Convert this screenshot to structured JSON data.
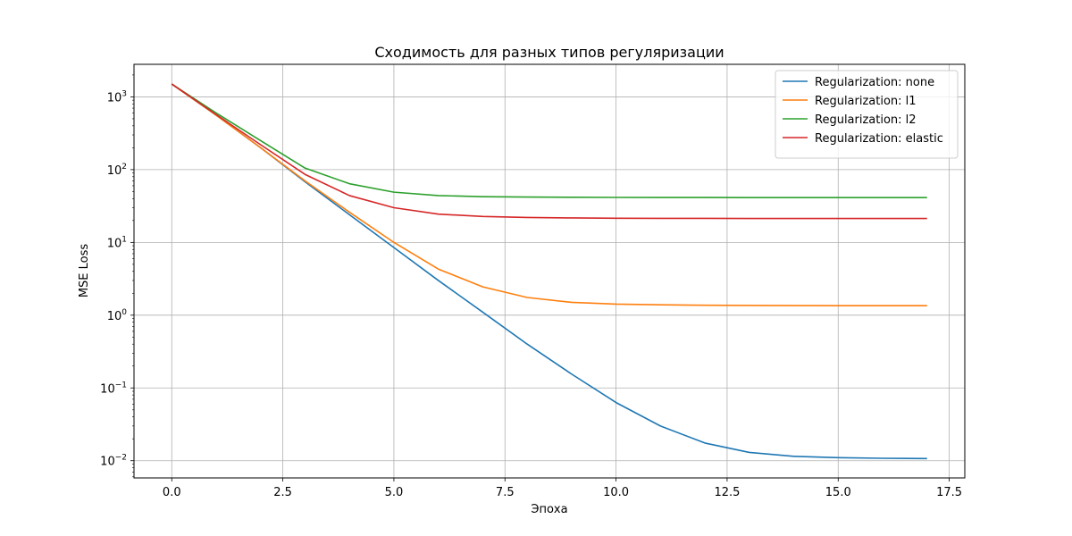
{
  "chart_data": {
    "type": "line",
    "title": "Сходимость для разных типов регуляризации",
    "xlabel": "Эпоха",
    "ylabel": "MSE Loss",
    "yscale": "log",
    "xlim": [
      -0.85,
      17.85
    ],
    "ylim": [
      0.0058,
      2800
    ],
    "x_ticks": [
      0,
      2.5,
      5,
      7.5,
      10,
      12.5,
      15,
      17.5
    ],
    "x_tick_labels": [
      "0.0",
      "2.5",
      "5.0",
      "7.5",
      "10.0",
      "12.5",
      "15.0",
      "17.5"
    ],
    "y_ticks": [
      {
        "value": 0.01,
        "base": "10",
        "exp": "−2"
      },
      {
        "value": 0.1,
        "base": "10",
        "exp": "−1"
      },
      {
        "value": 1,
        "base": "10",
        "exp": "0"
      },
      {
        "value": 10,
        "base": "10",
        "exp": "1"
      },
      {
        "value": 100,
        "base": "10",
        "exp": "2"
      },
      {
        "value": 1000,
        "base": "10",
        "exp": "3"
      }
    ],
    "grid": true,
    "legend_position": "top-right",
    "x": [
      0,
      1,
      2,
      3,
      4,
      5,
      6,
      7,
      8,
      9,
      10,
      11,
      12,
      13,
      14,
      15,
      16,
      17
    ],
    "series": [
      {
        "name": "Regularization: none",
        "color": "#1f77b4",
        "values": [
          1500,
          560,
          200,
          68,
          24,
          8.5,
          3.0,
          1.1,
          0.4,
          0.155,
          0.063,
          0.03,
          0.0175,
          0.013,
          0.0115,
          0.011,
          0.0108,
          0.0107
        ]
      },
      {
        "name": "Regularization: l1",
        "color": "#ff7f0e",
        "values": [
          1500,
          560,
          200,
          70,
          26,
          10,
          4.3,
          2.45,
          1.75,
          1.5,
          1.42,
          1.39,
          1.37,
          1.36,
          1.355,
          1.35,
          1.35,
          1.35
        ]
      },
      {
        "name": "Regularization: l2",
        "color": "#2ca02c",
        "values": [
          1500,
          600,
          250,
          105,
          64,
          49,
          44,
          42.5,
          42,
          41.7,
          41.5,
          41.4,
          41.4,
          41.3,
          41.3,
          41.3,
          41.3,
          41.3
        ]
      },
      {
        "name": "Regularization: elastic",
        "color": "#d62728",
        "values": [
          1500,
          570,
          220,
          86,
          44,
          30,
          24.5,
          22.7,
          22,
          21.7,
          21.5,
          21.4,
          21.4,
          21.3,
          21.3,
          21.3,
          21.3,
          21.3
        ]
      }
    ]
  }
}
